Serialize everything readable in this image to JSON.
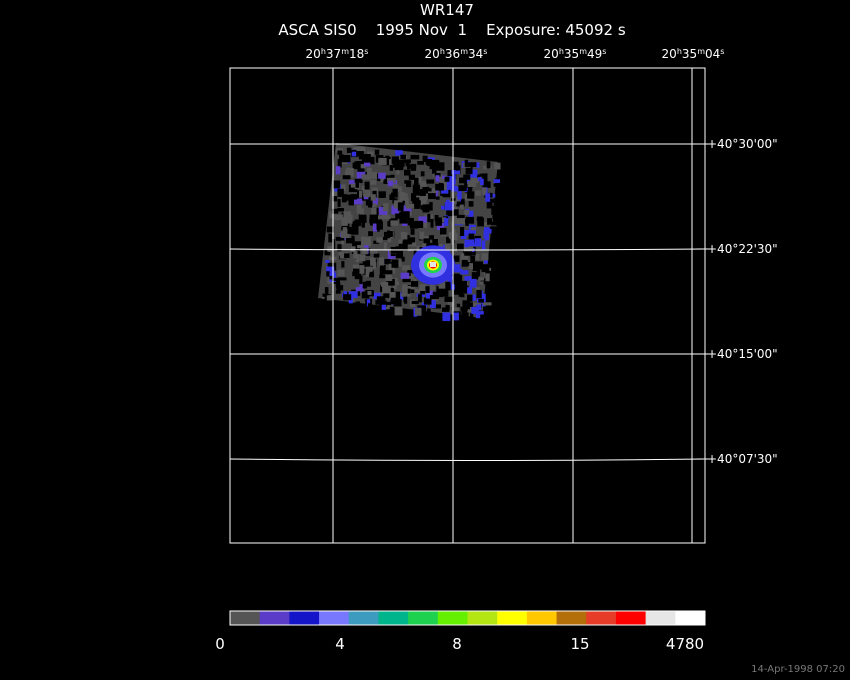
{
  "header": {
    "title": "WR147",
    "subtitle": "ASCA SIS0    1995 Nov  1    Exposure: 45092 s"
  },
  "ra_labels": [
    [
      "20",
      "h",
      "37",
      "m",
      "18",
      "s"
    ],
    [
      "20",
      "h",
      "36",
      "m",
      "34",
      "s"
    ],
    [
      "20",
      "h",
      "35",
      "m",
      "49",
      "s"
    ],
    [
      "20",
      "h",
      "35",
      "m",
      "04",
      "s"
    ]
  ],
  "dec_labels": [
    "+40°30'00\"",
    "+40°22'30\"",
    "+40°15'00\"",
    "+40°07'30\""
  ],
  "colorbar": {
    "colors": [
      "#555555",
      "#5a3cc8",
      "#1414c8",
      "#7878ff",
      "#3c9bbe",
      "#00b48c",
      "#1ed250",
      "#64f000",
      "#b4e614",
      "#ffff00",
      "#ffc800",
      "#b46e0a",
      "#e63c28",
      "#ff0000",
      "#e6e6e6",
      "#ffffff"
    ],
    "labels": [
      "0",
      "4",
      "8",
      "15",
      "4780"
    ]
  },
  "footer": {
    "timestamp": "14-Apr-1998 07:20"
  }
}
